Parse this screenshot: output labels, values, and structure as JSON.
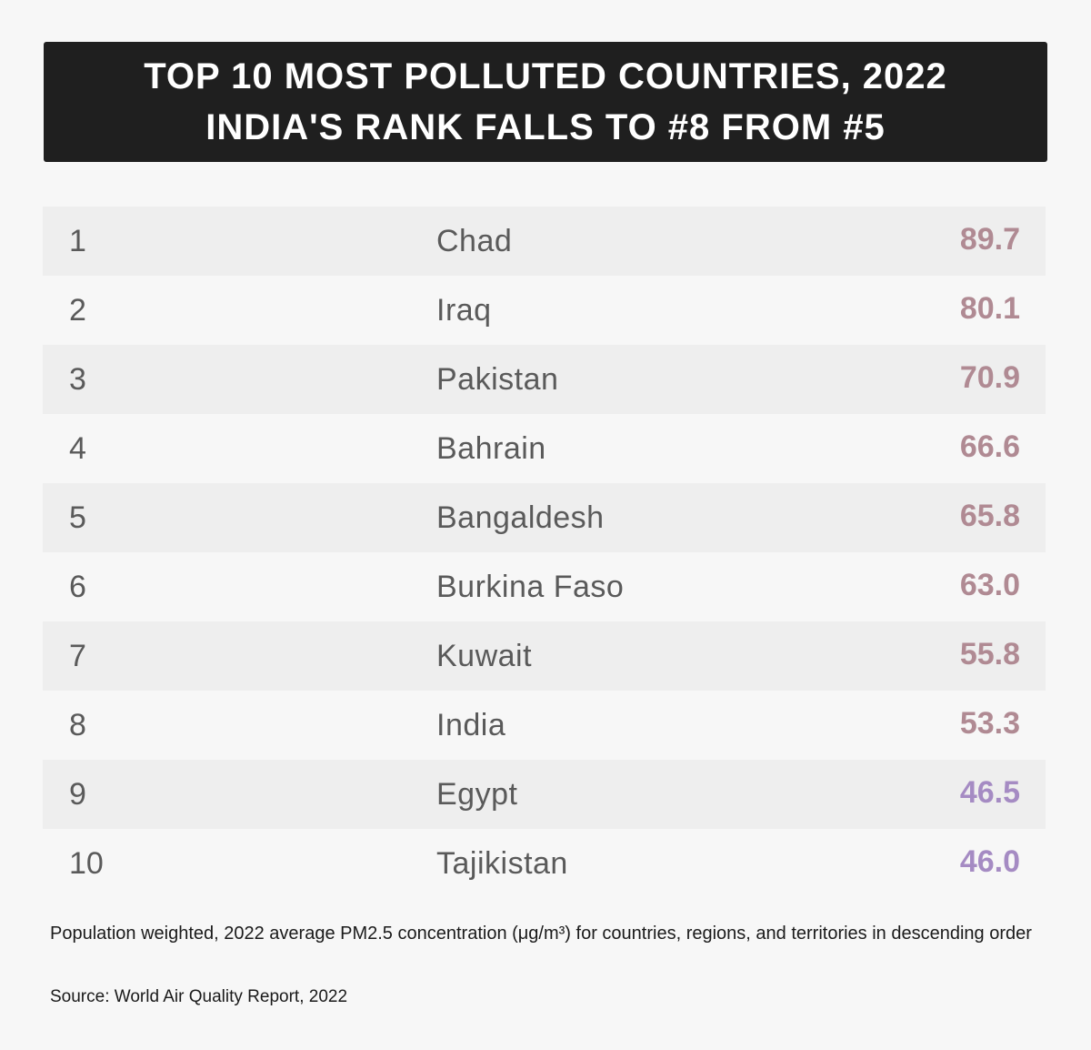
{
  "header": {
    "title_line1": "TOP 10 MOST POLLUTED COUNTRIES, 2022",
    "title_line2": "INDIA'S RANK FALLS TO #8 FROM #5"
  },
  "chart_data": {
    "type": "table",
    "title": "TOP 10 MOST POLLUTED COUNTRIES, 2022",
    "subtitle": "INDIA'S RANK FALLS TO #8 FROM #5",
    "rows": [
      {
        "rank": "1",
        "country": "Chad",
        "value": "89.7"
      },
      {
        "rank": "2",
        "country": "Iraq",
        "value": "80.1"
      },
      {
        "rank": "3",
        "country": "Pakistan",
        "value": "70.9"
      },
      {
        "rank": "4",
        "country": "Bahrain",
        "value": "66.6"
      },
      {
        "rank": "5",
        "country": "Bangaldesh",
        "value": "65.8"
      },
      {
        "rank": "6",
        "country": "Burkina Faso",
        "value": "63.0"
      },
      {
        "rank": "7",
        "country": "Kuwait",
        "value": "55.8"
      },
      {
        "rank": "8",
        "country": "India",
        "value": "53.3"
      },
      {
        "rank": "9",
        "country": "Egypt",
        "value": "46.5"
      },
      {
        "rank": "10",
        "country": "Tajikistan",
        "value": "46.0"
      }
    ],
    "value_colors": {
      "high": "#b08a93",
      "lower": "#a58bc3"
    }
  },
  "footer": {
    "note": "Population weighted, 2022 average PM2.5 concentration (μg/m³) for countries, regions, and territories in descending order",
    "source": "Source: World Air Quality Report, 2022"
  }
}
